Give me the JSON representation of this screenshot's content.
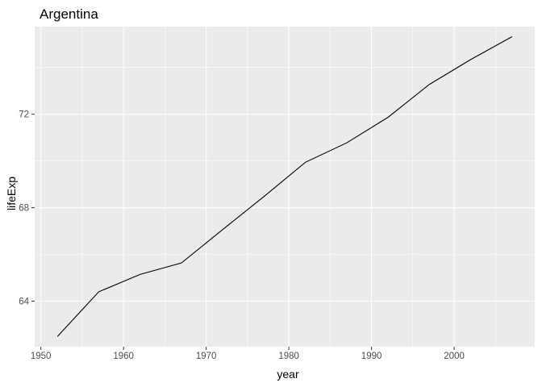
{
  "chart_data": {
    "type": "line",
    "title": "Argentina",
    "xlabel": "year",
    "ylabel": "lifeExp",
    "x": [
      1952,
      1957,
      1962,
      1967,
      1972,
      1977,
      1982,
      1987,
      1992,
      1997,
      2002,
      2007
    ],
    "series": [
      {
        "values": [
          62.485,
          64.399,
          65.142,
          65.634,
          67.065,
          68.481,
          69.942,
          70.774,
          71.868,
          73.275,
          74.34,
          75.32
        ]
      }
    ],
    "xlim": [
      1949.25,
      2009.75
    ],
    "ylim": [
      62.05,
      75.75
    ],
    "xticks": [
      1950,
      1960,
      1970,
      1980,
      1990,
      2000
    ],
    "yticks": [
      64,
      68,
      72
    ],
    "grid": true,
    "line_color": "#000000",
    "panel_color": "#ebebeb",
    "grid_color": "#ffffff"
  }
}
